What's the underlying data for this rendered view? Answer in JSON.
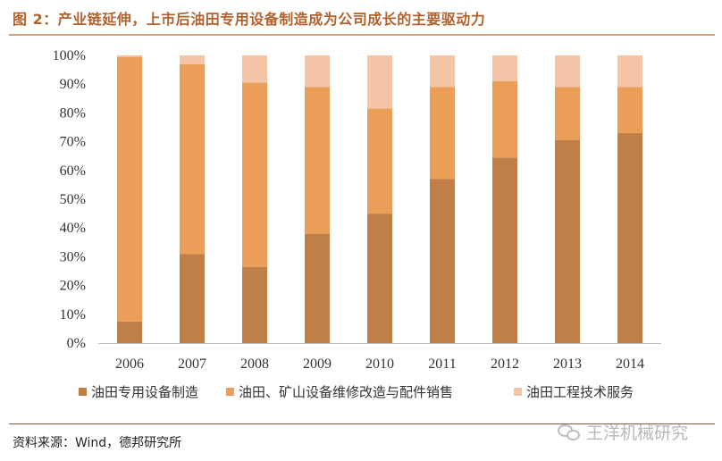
{
  "title": "图 2：产业链延伸，上市后油田专用设备制造成为公司成长的主要驱动力",
  "source": "资料来源：Wind，德邦研究所",
  "watermark": "王洋机械研究",
  "chart_data": {
    "type": "bar",
    "stacked": true,
    "percent": true,
    "categories": [
      "2006",
      "2007",
      "2008",
      "2009",
      "2010",
      "2011",
      "2012",
      "2013",
      "2014"
    ],
    "series": [
      {
        "name": "油田专用设备制造",
        "color": "#c17f48",
        "values": [
          7.5,
          31,
          26.5,
          38,
          45,
          57,
          64.5,
          70.5,
          73
        ]
      },
      {
        "name": "油田、矿山设备维修改造与配件销售",
        "color": "#eb9e58",
        "values": [
          92,
          66,
          64,
          51,
          36.5,
          32,
          26.5,
          18.5,
          16
        ]
      },
      {
        "name": "油田工程技术服务",
        "color": "#f3c4a5",
        "values": [
          0.5,
          3,
          9.5,
          11,
          18.5,
          11,
          9,
          11,
          11
        ]
      }
    ],
    "ylim": [
      0,
      100
    ],
    "yticks": [
      "0%",
      "10%",
      "20%",
      "30%",
      "40%",
      "50%",
      "60%",
      "70%",
      "80%",
      "90%",
      "100%"
    ],
    "xlabel": "",
    "ylabel": "",
    "grid": false,
    "legend": "bottom"
  }
}
